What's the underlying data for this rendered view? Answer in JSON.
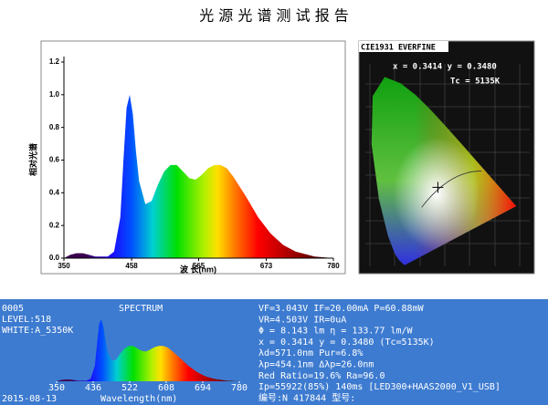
{
  "title": "光 源 光 谱 测 试 报 告",
  "spectrum": {
    "type": "area",
    "ylabel": "相对光谱",
    "xlabel": "波 长(nm)",
    "x": [
      350,
      360,
      370,
      380,
      390,
      400,
      420,
      430,
      440,
      445,
      450,
      455,
      460,
      465,
      470,
      480,
      490,
      500,
      510,
      520,
      530,
      540,
      550,
      560,
      570,
      580,
      590,
      600,
      610,
      620,
      630,
      640,
      660,
      680,
      700,
      720,
      750,
      780
    ],
    "values": [
      0.0,
      0.02,
      0.03,
      0.03,
      0.02,
      0.01,
      0.01,
      0.04,
      0.25,
      0.6,
      0.92,
      1.0,
      0.88,
      0.65,
      0.47,
      0.33,
      0.35,
      0.45,
      0.53,
      0.57,
      0.57,
      0.53,
      0.49,
      0.48,
      0.51,
      0.55,
      0.57,
      0.57,
      0.55,
      0.5,
      0.44,
      0.38,
      0.25,
      0.15,
      0.08,
      0.04,
      0.01,
      0.0
    ],
    "xlim": [
      350,
      780
    ],
    "ylim": [
      0,
      1.2
    ],
    "xticks": [
      350,
      458,
      565,
      673,
      780
    ],
    "yticks": [
      {
        "value": 0,
        "label": "0.0"
      },
      0.2,
      0.4,
      0.6,
      0.8,
      {
        "value": 1,
        "label": "1.0"
      },
      1.2
    ]
  },
  "cie": {
    "title": "CIE1931 EVERFINE",
    "coords": "x = 0.3414 y = 0.3480",
    "tc": "Tc = 5135K"
  },
  "panel": {
    "id": "0005",
    "level": "LEVEL:518",
    "white": "WHITE:A_5350K",
    "title": "SPECTRUM",
    "xticks": [
      350,
      436,
      522,
      608,
      694,
      780
    ],
    "xlim": [
      350,
      780
    ],
    "date": "2015-08-13",
    "xlabel": "Wavelength(nm)",
    "lines": [
      "VF=3.043V  IF=20.00mA  P=60.88mW",
      "VR=4.503V  IR=0uA",
      "Φ  = 8.143 lm    η  = 133.77 lm/W",
      "x  = 0.3414 y = 0.3480  (Tc=5135K)",
      "λd=571.0nm Pur=6.8%",
      "λp=454.1nm Δλp=26.0nm",
      "Red Ratio=19.6%  Ra=96.0",
      "Ip=55922(85%) 140ms  [LED300+HAAS2000_V1_USB]",
      "编号:N 417844 型号:"
    ]
  }
}
